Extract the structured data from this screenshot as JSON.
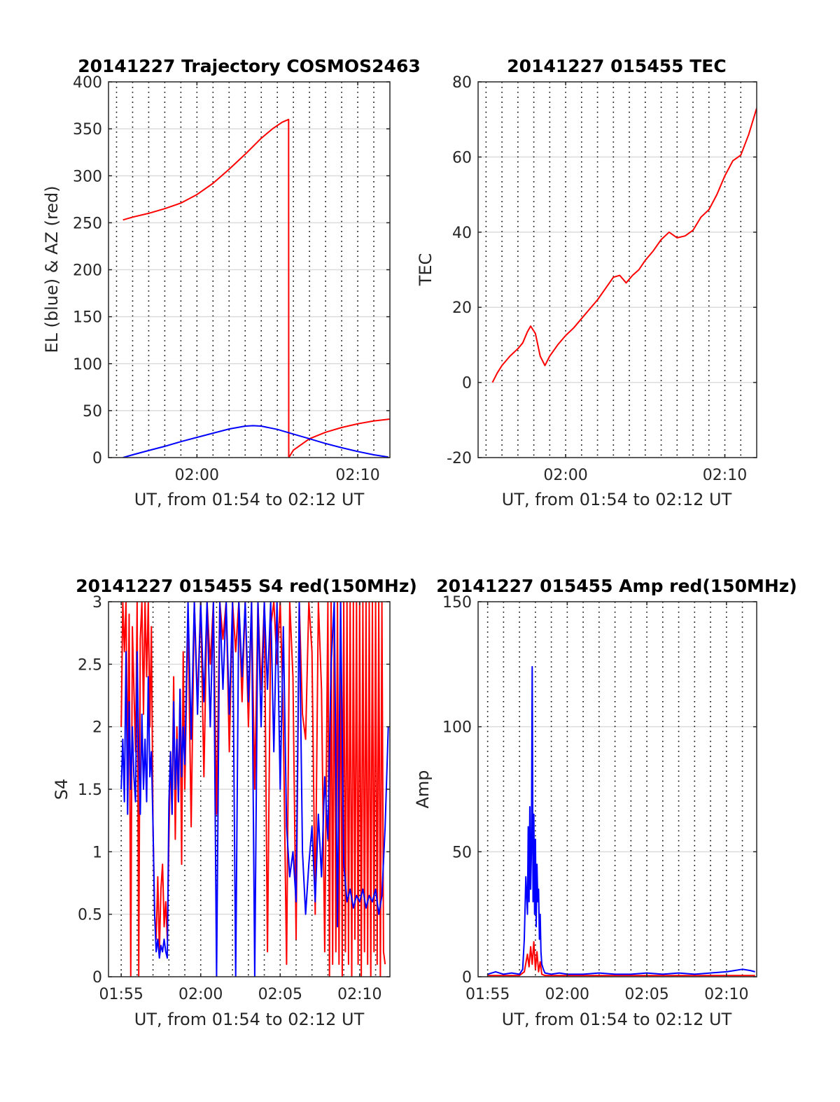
{
  "colors": {
    "red": "#ff0000",
    "blue": "#0000ff",
    "axis": "#262626",
    "grid": "#dcdcdc",
    "vgrid": "#000000"
  },
  "chart_data": [
    {
      "type": "line",
      "title": "20141227 Trajectory COSMOS2463",
      "xlabel": "UT, from 01:54 to 02:12 UT",
      "ylabel": "EL (blue) & AZ (red)",
      "xlim": [
        114.5,
        132.0
      ],
      "ylim": [
        0,
        400
      ],
      "yticks": [
        0,
        50,
        100,
        150,
        200,
        250,
        300,
        350,
        400
      ],
      "ytick_labels": [
        "0",
        "50",
        "100",
        "150",
        "200",
        "250",
        "300",
        "350",
        "400"
      ],
      "xticks": [
        120,
        130
      ],
      "xtick_labels": [
        "02:00",
        "02:10"
      ],
      "vgrid_x": [
        115,
        116,
        117,
        118,
        119,
        120,
        121,
        122,
        123,
        124,
        125,
        126,
        127,
        128,
        129,
        130,
        131,
        132
      ],
      "series": [
        {
          "color": "red",
          "x": [
            115.4,
            116,
            117,
            118,
            119,
            120,
            121,
            122,
            123,
            124,
            124.7,
            125.3,
            125.7,
            125.71,
            126,
            127,
            128,
            129,
            130,
            131,
            132
          ],
          "y": [
            253,
            256,
            260,
            265,
            271,
            280,
            292,
            307,
            323,
            340,
            350,
            357,
            360,
            0,
            8,
            20,
            27,
            32,
            36,
            39,
            41
          ]
        },
        {
          "color": "blue",
          "x": [
            115.4,
            116,
            117,
            118,
            119,
            120,
            121,
            122,
            123,
            123.5,
            124,
            125,
            126,
            127,
            128,
            129,
            130,
            131,
            131.9
          ],
          "y": [
            0,
            3,
            7.5,
            12,
            17,
            21.5,
            26,
            30.5,
            33.5,
            34,
            33.5,
            30,
            25,
            20,
            15,
            10.5,
            6.5,
            3,
            0.5
          ]
        }
      ]
    },
    {
      "type": "line",
      "title": "20141227 015455 TEC",
      "xlabel": "UT, from 01:54 to 02:12 UT",
      "ylabel": "TEC",
      "xlim": [
        114.5,
        132.0
      ],
      "ylim": [
        -20,
        80
      ],
      "yticks": [
        -20,
        0,
        20,
        40,
        60,
        80
      ],
      "ytick_labels": [
        "-20",
        "0",
        "20",
        "40",
        "60",
        "80"
      ],
      "xticks": [
        120,
        130
      ],
      "xtick_labels": [
        "02:00",
        "02:10"
      ],
      "vgrid_x": [
        115,
        116,
        117,
        118,
        119,
        120,
        121,
        122,
        123,
        124,
        125,
        126,
        127,
        128,
        129,
        130,
        131,
        132
      ],
      "series": [
        {
          "color": "red",
          "x": [
            115.4,
            115.7,
            116,
            116.5,
            117,
            117.3,
            117.6,
            117.8,
            118.1,
            118.4,
            118.7,
            119,
            119.5,
            120,
            120.5,
            121,
            121.5,
            122,
            122.5,
            123,
            123.4,
            123.8,
            124.2,
            124.6,
            125,
            125.5,
            126,
            126.5,
            127,
            127.5,
            128,
            128.5,
            129,
            129.5,
            130,
            130.5,
            131,
            131.5,
            132
          ],
          "y": [
            0,
            2.5,
            4.5,
            7,
            9,
            10.5,
            13.5,
            15,
            13,
            7,
            4.5,
            7,
            10,
            12.5,
            14.5,
            17,
            19.5,
            22,
            25,
            28,
            28.5,
            26.5,
            28.5,
            30,
            32.5,
            35,
            38,
            40,
            38.5,
            39,
            40.5,
            44,
            46,
            50,
            55,
            59,
            60.5,
            66,
            73
          ]
        }
      ]
    },
    {
      "type": "line",
      "title": "20141227 015455 S4 red(150MHz)",
      "xlabel": "UT, from 01:54 to 02:12 UT",
      "ylabel": "S4",
      "xlim": [
        114.2,
        131.9
      ],
      "ylim": [
        0,
        3
      ],
      "yticks": [
        0,
        0.5,
        1,
        1.5,
        2,
        2.5,
        3
      ],
      "ytick_labels": [
        "0",
        "0.5",
        "1",
        "1.5",
        "2",
        "2.5",
        "3"
      ],
      "xticks": [
        115,
        120,
        125,
        130
      ],
      "xtick_labels": [
        "01:55",
        "02:00",
        "02:05",
        "02:10"
      ],
      "vgrid_x": [
        115,
        116,
        117,
        118,
        119,
        120,
        121,
        122,
        123,
        124,
        125,
        126,
        127,
        128,
        129,
        130,
        131
      ],
      "series": [
        {
          "color": "red",
          "x": [
            115,
            115.1,
            115.2,
            115.3,
            115.4,
            115.5,
            115.6,
            115.7,
            115.8,
            115.9,
            116,
            116.1,
            116.2,
            116.3,
            116.4,
            116.5,
            116.6,
            116.7,
            116.8,
            116.9,
            117,
            117.1,
            117.2,
            117.3,
            117.4,
            117.5,
            117.6,
            117.7,
            117.8,
            117.9,
            118,
            118.1,
            118.2,
            118.3,
            118.4,
            118.5,
            118.6,
            118.7,
            118.8,
            118.9,
            119,
            119.2,
            119.4,
            119.6,
            119.8,
            120,
            120.2,
            120.4,
            120.6,
            120.8,
            121,
            121.2,
            121.4,
            121.6,
            121.8,
            122,
            122.2,
            122.4,
            122.6,
            122.8,
            123,
            123.2,
            123.4,
            123.6,
            123.8,
            124,
            124.2,
            124.4,
            124.6,
            124.8,
            125,
            125.2,
            125.4,
            125.6,
            125.8,
            126,
            126.2,
            126.4,
            126.6,
            126.8,
            127,
            127.2,
            127.4,
            127.6,
            127.8,
            128,
            128.1,
            128.2,
            128.3,
            128.4,
            128.5,
            128.6,
            128.7,
            128.8,
            128.9,
            129,
            129.1,
            129.2,
            129.3,
            129.4,
            129.5,
            129.6,
            129.7,
            129.8,
            129.9,
            130,
            130.1,
            130.2,
            130.3,
            130.4,
            130.5,
            130.6,
            130.7,
            130.8,
            130.9,
            131,
            131.1,
            131.2,
            131.3,
            131.4,
            131.5,
            131.6
          ],
          "y": [
            2.0,
            3.0,
            2.6,
            3.0,
            1.6,
            2.9,
            0.0,
            2.8,
            2.3,
            1.8,
            3.0,
            0.0,
            2.7,
            3.0,
            2.1,
            3.0,
            2.4,
            3.0,
            2.0,
            2.8,
            1.2,
            0.5,
            0.3,
            0.8,
            0.2,
            0.7,
            0.9,
            0.4,
            0.6,
            0.3,
            1.1,
            1.8,
            1.3,
            2.4,
            1.1,
            2.0,
            1.4,
            2.3,
            0.9,
            2.6,
            1.5,
            2.9,
            1.2,
            3.0,
            2.2,
            3.0,
            1.6,
            3.0,
            2.5,
            3.0,
            1.3,
            3.0,
            2.7,
            3.0,
            1.8,
            3.0,
            2.6,
            3.0,
            2.2,
            3.0,
            2.0,
            3.0,
            1.5,
            3.0,
            2.3,
            3.0,
            0.2,
            2.8,
            3.0,
            2.5,
            3.0,
            2.0,
            0.1,
            3.0,
            2.4,
            0.3,
            3.0,
            2.1,
            1.9,
            3.0,
            2.6,
            0.5,
            3.0,
            2.3,
            0.2,
            3.0,
            0.0,
            3.0,
            0.1,
            3.0,
            0.2,
            3.0,
            0.1,
            3.0,
            0.0,
            3.0,
            0.2,
            3.0,
            0.1,
            3.0,
            0.0,
            3.0,
            0.3,
            3.0,
            0.1,
            3.0,
            0.0,
            3.0,
            0.2,
            3.0,
            0.1,
            3.0,
            0.0,
            3.0,
            0.2,
            3.0,
            0.1,
            3.0,
            0.0,
            3.0,
            0.2,
            0.1
          ]
        },
        {
          "color": "blue",
          "x": [
            115,
            115.1,
            115.2,
            115.3,
            115.4,
            115.5,
            115.6,
            115.7,
            115.8,
            115.9,
            116,
            116.1,
            116.2,
            116.3,
            116.4,
            116.5,
            116.6,
            116.7,
            116.8,
            116.9,
            117,
            117.1,
            117.2,
            117.3,
            117.4,
            117.5,
            117.6,
            117.7,
            117.8,
            117.9,
            118,
            118.1,
            118.2,
            118.3,
            118.4,
            118.5,
            118.6,
            118.7,
            118.8,
            118.9,
            119,
            119.2,
            119.4,
            119.6,
            119.8,
            120,
            120.2,
            120.4,
            120.6,
            120.8,
            121,
            121.2,
            121.4,
            121.6,
            121.8,
            122,
            122.2,
            122.4,
            122.6,
            122.8,
            123,
            123.2,
            123.4,
            123.6,
            123.8,
            124,
            124.2,
            124.4,
            124.6,
            124.8,
            125,
            125.2,
            125.4,
            125.6,
            125.8,
            126,
            126.2,
            126.4,
            126.6,
            126.8,
            127,
            127.2,
            127.4,
            127.6,
            127.8,
            128,
            128.2,
            128.4,
            128.6,
            128.8,
            129,
            129.2,
            129.4,
            129.6,
            129.8,
            130,
            130.2,
            130.4,
            130.6,
            130.8,
            131,
            131.2,
            131.4,
            131.6,
            131.8
          ],
          "y": [
            1.5,
            1.9,
            1.4,
            2.6,
            1.3,
            2.2,
            1.5,
            2.0,
            1.6,
            1.4,
            2.6,
            1.8,
            1.3,
            2.1,
            1.5,
            1.9,
            1.4,
            2.4,
            1.6,
            1.8,
            1.2,
            0.5,
            0.2,
            0.3,
            0.15,
            0.25,
            0.2,
            0.3,
            0.2,
            0.15,
            1.4,
            1.8,
            1.3,
            2.2,
            1.5,
            1.9,
            1.4,
            2.3,
            1.6,
            2.0,
            1.7,
            3.0,
            1.9,
            3.0,
            2.1,
            3.0,
            2.2,
            3.0,
            2.0,
            3.0,
            0.0,
            3.0,
            2.3,
            3.0,
            2.1,
            3.0,
            0.0,
            3.0,
            2.4,
            3.0,
            2.2,
            3.0,
            0.0,
            3.0,
            2.0,
            3.0,
            2.3,
            3.0,
            1.8,
            3.0,
            1.5,
            2.8,
            1.2,
            0.8,
            1.0,
            0.6,
            3.0,
            1.0,
            0.5,
            0.9,
            1.2,
            0.6,
            1.3,
            0.8,
            1.6,
            1.1,
            2.5,
            3.0,
            0.4,
            3.0,
            0.9,
            0.6,
            0.7,
            0.55,
            0.65,
            0.6,
            0.7,
            0.55,
            0.65,
            0.6,
            0.7,
            0.5,
            0.65,
            1.2,
            2.0
          ]
        }
      ]
    },
    {
      "type": "line",
      "title": "20141227 015455 Amp red(150MHz)",
      "xlabel": "UT, from 01:54 to 02:12 UT",
      "ylabel": "Amp",
      "xlim": [
        114.4,
        131.9
      ],
      "ylim": [
        0,
        150
      ],
      "yticks": [
        0,
        50,
        100,
        150
      ],
      "ytick_labels": [
        "0",
        "50",
        "100",
        "150"
      ],
      "xticks": [
        115,
        120,
        125,
        130
      ],
      "xtick_labels": [
        "01:55",
        "02:00",
        "02:05",
        "02:10"
      ],
      "vgrid_x": [
        115,
        116,
        117,
        118,
        119,
        120,
        121,
        122,
        123,
        124,
        125,
        126,
        127,
        128,
        129,
        130,
        131
      ],
      "series": [
        {
          "color": "red",
          "x": [
            115,
            116,
            117,
            117.3,
            117.5,
            117.6,
            117.7,
            117.8,
            117.9,
            118,
            118.1,
            118.2,
            118.3,
            118.4,
            118.6,
            119,
            120,
            121,
            122,
            123,
            124,
            125,
            126,
            127,
            128,
            129,
            130,
            131,
            131.8
          ],
          "y": [
            0.5,
            0.5,
            0.5,
            2,
            9,
            4,
            12,
            5,
            14,
            3,
            10,
            2,
            6,
            1,
            0.5,
            0.5,
            0.5,
            0.5,
            0.5,
            0.5,
            0.5,
            0.5,
            0.5,
            0.5,
            0.5,
            0.5,
            0.5,
            0.5,
            0.5
          ]
        },
        {
          "color": "blue",
          "x": [
            115,
            115.5,
            116,
            116.5,
            117,
            117.2,
            117.3,
            117.4,
            117.5,
            117.55,
            117.6,
            117.65,
            117.7,
            117.75,
            117.8,
            117.85,
            117.9,
            117.95,
            118,
            118.05,
            118.1,
            118.15,
            118.2,
            118.25,
            118.3,
            118.35,
            118.4,
            118.5,
            118.6,
            119,
            119.5,
            120,
            121,
            122,
            123,
            124,
            125,
            126,
            127,
            128,
            129,
            130,
            130.5,
            131,
            131.5,
            131.8
          ],
          "y": [
            1,
            2,
            1,
            1.5,
            1,
            3,
            15,
            40,
            25,
            60,
            30,
            68,
            35,
            50,
            124,
            30,
            65,
            25,
            55,
            20,
            45,
            30,
            35,
            15,
            25,
            10,
            5,
            3,
            1.5,
            1,
            1.5,
            1,
            1,
            1.5,
            1,
            1,
            1.5,
            1,
            1.5,
            1,
            1.5,
            2,
            2.5,
            3,
            2.5,
            2
          ]
        }
      ]
    }
  ]
}
